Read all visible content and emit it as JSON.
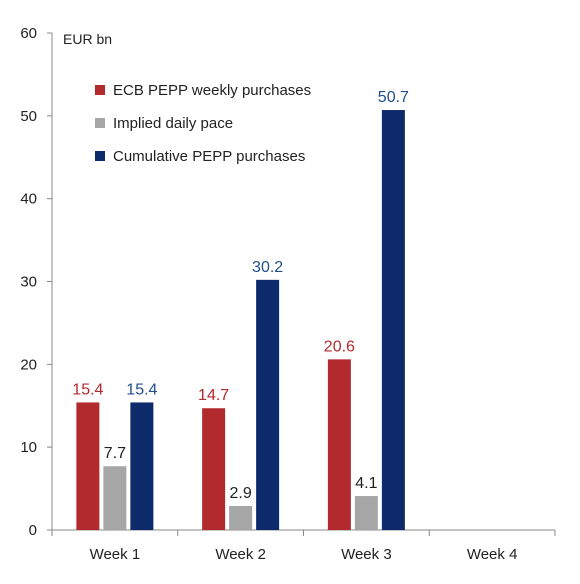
{
  "chart_data": {
    "type": "bar",
    "unit_label": "EUR bn",
    "categories": [
      "Week 1",
      "Week 2",
      "Week 3",
      "Week 4"
    ],
    "ylim": [
      0,
      60
    ],
    "yticks": [
      0,
      10,
      20,
      30,
      40,
      50,
      60
    ],
    "grid": false,
    "legend_position": "top-left",
    "series": [
      {
        "name": "ECB PEPP weekly purchases",
        "color": "#b22a2e",
        "label_color": "#b22a2e",
        "values": [
          15.4,
          14.7,
          20.6,
          null
        ]
      },
      {
        "name": "Implied daily pace",
        "color": "#a6a6a6",
        "label_color": "#222222",
        "values": [
          7.7,
          2.9,
          4.1,
          null
        ]
      },
      {
        "name": "Cumulative PEPP purchases",
        "color": "#0d2a6b",
        "label_color": "#1f4e8c",
        "values": [
          15.4,
          30.2,
          50.7,
          null
        ]
      }
    ]
  }
}
